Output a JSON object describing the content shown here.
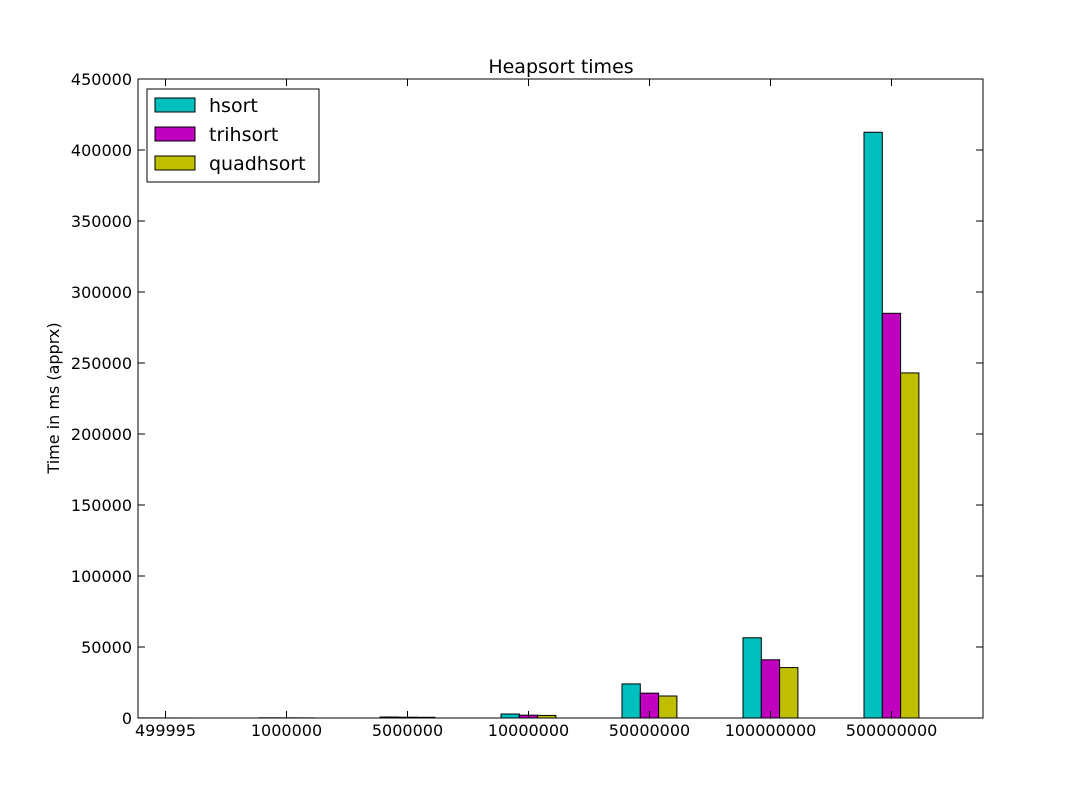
{
  "chart_data": {
    "type": "bar",
    "title": "Heapsort times",
    "xlabel": "",
    "ylabel": "Time in ms (apprx)",
    "categories": [
      "499995",
      "1000000",
      "5000000",
      "10000000",
      "50000000",
      "100000000",
      "500000000"
    ],
    "series": [
      {
        "name": "hsort",
        "color": "#00bfbf",
        "values": [
          60,
          150,
          700,
          2800,
          24000,
          56500,
          412500
        ]
      },
      {
        "name": "trihsort",
        "color": "#bf00bf",
        "values": [
          40,
          110,
          550,
          2000,
          17500,
          41000,
          285000
        ]
      },
      {
        "name": "quadhsort",
        "color": "#bfbf00",
        "values": [
          35,
          95,
          500,
          1800,
          15500,
          35500,
          243000
        ]
      }
    ],
    "ylim": [
      0,
      450000
    ],
    "yticks": [
      0,
      50000,
      100000,
      150000,
      200000,
      250000,
      300000,
      350000,
      400000,
      450000
    ],
    "grid": false,
    "legend_position": "top-left"
  }
}
